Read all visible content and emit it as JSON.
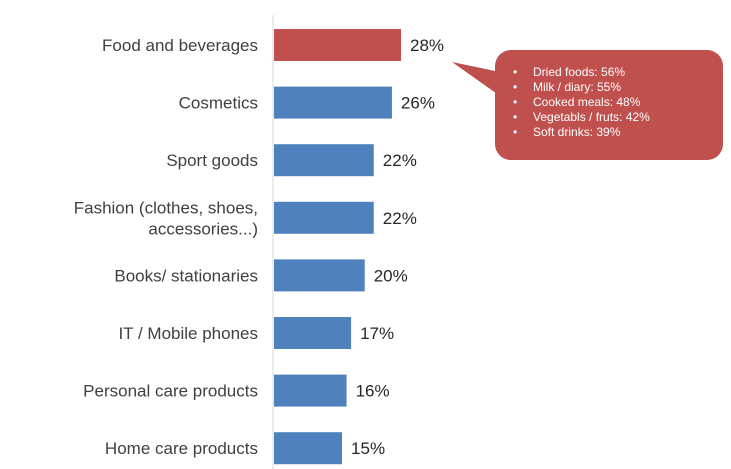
{
  "chart_data": {
    "type": "bar",
    "orientation": "horizontal",
    "categories": [
      "Food and beverages",
      "Cosmetics",
      "Sport goods",
      "Fashion (clothes, shoes,\naccessories...)",
      "Books/ stationaries",
      "IT / Mobile phones",
      "Personal care products",
      "Home care products"
    ],
    "values": [
      28,
      26,
      22,
      22,
      20,
      17,
      16,
      15
    ],
    "value_labels": [
      "28%",
      "26%",
      "22%",
      "22%",
      "20%",
      "17%",
      "16%",
      "15%"
    ],
    "highlight_index": 0,
    "xlim": [
      0,
      50
    ],
    "title": "",
    "xlabel": "",
    "ylabel": "",
    "grid": false,
    "colors": {
      "default": "#4f81bd",
      "highlight": "#c0504d",
      "axis": "#d9d9d9"
    }
  },
  "callout": {
    "items": [
      "Dried foods: 56%",
      "Milk / diary: 55%",
      "Cooked meals: 48%",
      "Vegetabls / fruts: 42%",
      "Soft drinks: 39%"
    ],
    "color": "#c0504d"
  }
}
